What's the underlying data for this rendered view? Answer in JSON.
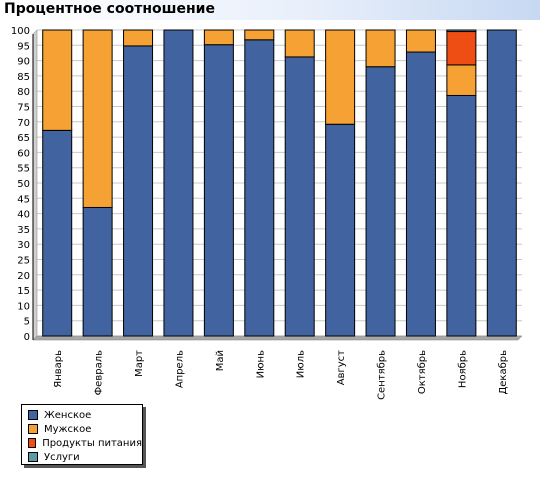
{
  "window": {
    "title": "Процентное соотношение"
  },
  "chart_data": {
    "type": "bar",
    "stacked": true,
    "title": "Процентное соотношение",
    "categories": [
      "Январь",
      "Февраль",
      "Март",
      "Апрель",
      "Май",
      "Июнь",
      "Июль",
      "Август",
      "Сентябрь",
      "Октябрь",
      "Ноябрь",
      "Декабрь"
    ],
    "series": [
      {
        "name": "Женское",
        "color": "#4163a0",
        "values": [
          67.2,
          42,
          94.8,
          100,
          95.2,
          96.8,
          91.2,
          69.2,
          88,
          92.8,
          78.6,
          100
        ]
      },
      {
        "name": "Мужское",
        "color": "#f5a133",
        "values": [
          32.8,
          58,
          5.2,
          0,
          4.8,
          3.2,
          8.8,
          30.8,
          12,
          7.2,
          10,
          0
        ]
      },
      {
        "name": "Продукты питания",
        "color": "#ee4e14",
        "values": [
          0,
          0,
          0,
          0,
          0,
          0,
          0,
          0,
          0,
          0,
          10.9,
          0
        ]
      },
      {
        "name": "Услуги",
        "color": "#5b9aa8",
        "values": [
          0,
          0,
          0,
          0,
          0,
          0,
          0,
          0,
          0,
          0,
          0.5,
          0
        ]
      }
    ],
    "ylim": [
      0,
      100
    ],
    "yticks": [
      0,
      5,
      10,
      15,
      20,
      25,
      30,
      35,
      40,
      45,
      50,
      55,
      60,
      65,
      70,
      75,
      80,
      85,
      90,
      95,
      100
    ],
    "grid": true,
    "legend": "bottom-left"
  }
}
